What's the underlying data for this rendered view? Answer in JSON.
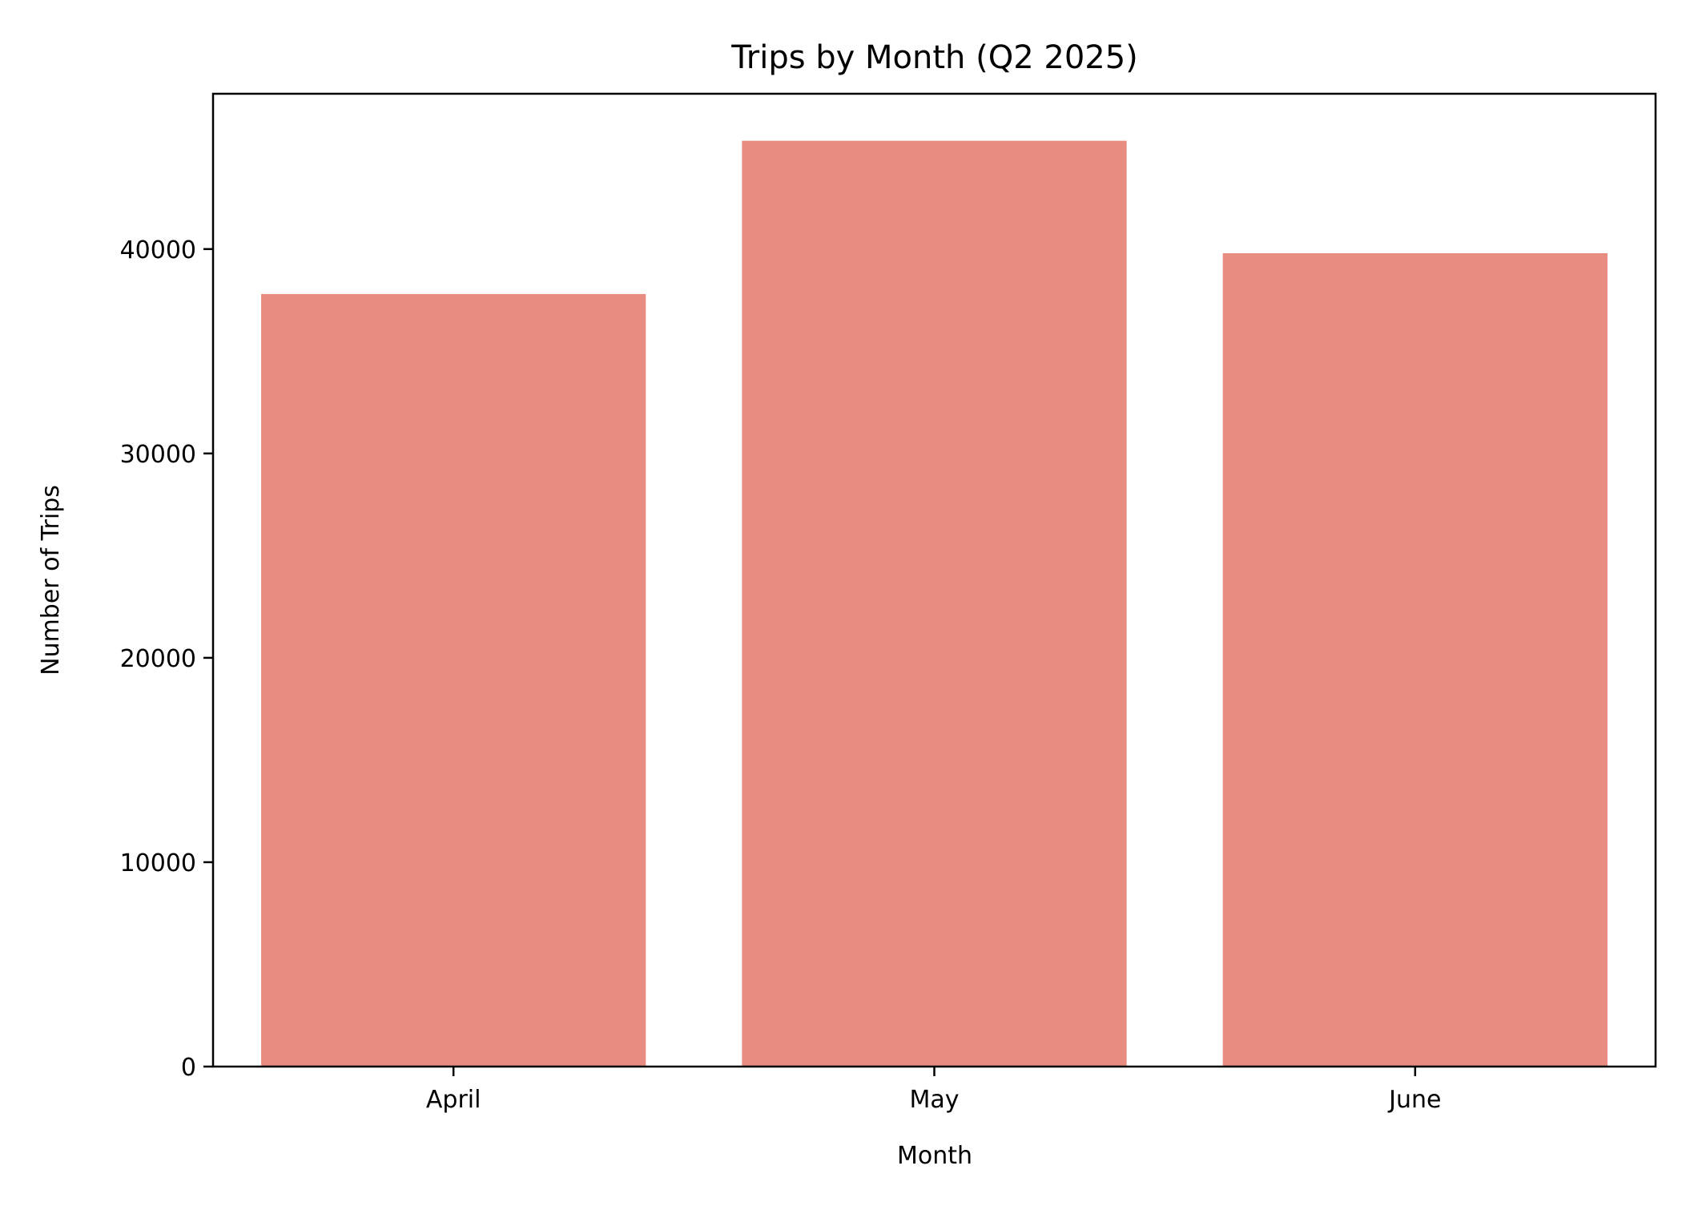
{
  "chart_data": {
    "type": "bar",
    "title": "Trips by Month (Q2 2025)",
    "xlabel": "Month",
    "ylabel": "Number of Trips",
    "categories": [
      "April",
      "May",
      "June"
    ],
    "values": [
      37800,
      45300,
      39800
    ],
    "ylim": [
      0,
      47600
    ],
    "yticks": [
      0,
      10000,
      20000,
      30000,
      40000
    ],
    "ytick_labels": [
      "0",
      "10000",
      "20000",
      "30000",
      "40000"
    ],
    "bar_color": "#e88c81",
    "grid": false,
    "legend": "none"
  }
}
